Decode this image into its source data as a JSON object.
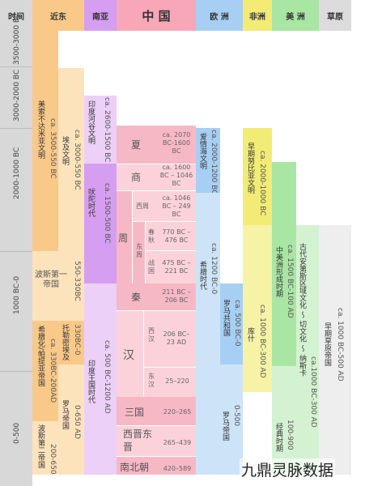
{
  "headers": {
    "time": "时间",
    "near_east": "近东",
    "south_asia": "南亚",
    "china": "中 国",
    "europe": "欧 洲",
    "africa": "非洲",
    "americas": "美 洲",
    "steppe": "草原"
  },
  "time_labels": [
    "3500-3000 BC",
    "3000-2000 BC",
    "2000-1000 BC",
    "1000 BC-0",
    "0-500"
  ],
  "near_east": {
    "mesopotamia_name": "美索不达米亚文明",
    "mesopotamia_date": "ca. 3500-550 BC",
    "egypt_name": "埃及文明",
    "egypt_date": "ca. 3000-550 BC",
    "persia1_name": "波斯第一帝国",
    "persia1_date": "550-330BC",
    "hellenistic_name": "希腊化/帕提亚帝国",
    "hellenistic_date": "ca. 330BC-200AD",
    "ptolemy_name": "托勒密埃及",
    "ptolemy_date": "330BC-0",
    "rome_egypt_name": "罗马帝国",
    "rome_egypt_date": "0-650 AD",
    "persia2_name": "波斯第二帝国",
    "persia2_date": "200-650"
  },
  "south_asia": {
    "indus_name": "印度河谷文明",
    "indus_date": "ca. 2600-1500 BC",
    "vedic_name": "吠陀时代",
    "vedic_date": "ca. 1500-500 BC",
    "kingdoms_name": "印度王国时代",
    "kingdoms_date": "ca. 500 BC-1200 AD"
  },
  "china": {
    "xia": "夏",
    "xia_date": "ca. 2070 BC-1600 BC",
    "shang": "商",
    "shang_date": "ca. 1600 BC – 1046 BC",
    "western_zhou": "西周",
    "western_zhou_date": "ca. 1046 BC – 249 BC",
    "zhou": "周",
    "eastern_zhou": "东周",
    "spring_autumn": "春秋",
    "spring_autumn_date": "770 BC – 476 BC",
    "warring_states": "战国",
    "warring_states_date": "475 BC – 221 BC",
    "qin": "秦",
    "qin_date": "211 BC – 206 BC",
    "han": "汉",
    "western_han": "西汉",
    "western_han_date": "206 BC– 23 AD",
    "eastern_han": "东汉",
    "eastern_han_date": "25–220",
    "three_kingdoms": "三国",
    "three_kingdoms_date": "220–265",
    "jin": "西晋东晋",
    "jin_date": "265–439",
    "nanbei": "南北朝",
    "nanbei_date": "420–589"
  },
  "europe": {
    "aegean_name": "爱情海文明",
    "aegean_date": "ca. 2000-1200 BC",
    "greek_name": "希腊时代",
    "greek_date": "ca. 1200 BC-0",
    "roman_rep_name": "罗马共和国",
    "roman_rep_date": "ca. 500 BC-0",
    "roman_emp_name": "罗马帝国",
    "roman_emp_date": "0-500"
  },
  "africa": {
    "nubia_name": "早期努比亚文明",
    "nubia_date": "ca. 2000-1000 BC",
    "kush_name": "库什",
    "kush_date": "ca. 1000 BC-300 AD"
  },
  "americas": {
    "formative_name": "中美洲形成时期",
    "formative_date": "ca. 1500 BC-100 AD",
    "classic_name": "经典时期",
    "classic_date": "100-900",
    "andes_name": "古代安第斯区域文化 ～ 切文化 ～ 纳斯卡",
    "andes_date": "ca.1000 BC-300 AD"
  },
  "steppe": {
    "name": "早期草原帝国",
    "date": "ca. 1000 BC-500 AD"
  },
  "watermark": "九鼎灵脉数据",
  "colors": {
    "time": "#d8d8d8",
    "near_east": "#f9c98a",
    "near_east_light": "#fde3bc",
    "south_asia": "#d59ef0",
    "south_asia_light": "#ecd0f8",
    "china": "#f7a7b8",
    "china_light": "#fbd2da",
    "europe": "#a7cff3",
    "europe_light": "#cde4f8",
    "africa": "#f2ec76",
    "americas": "#a9e6a4",
    "americas_light": "#d4f2d1",
    "steppe": "#dcdcdc"
  }
}
